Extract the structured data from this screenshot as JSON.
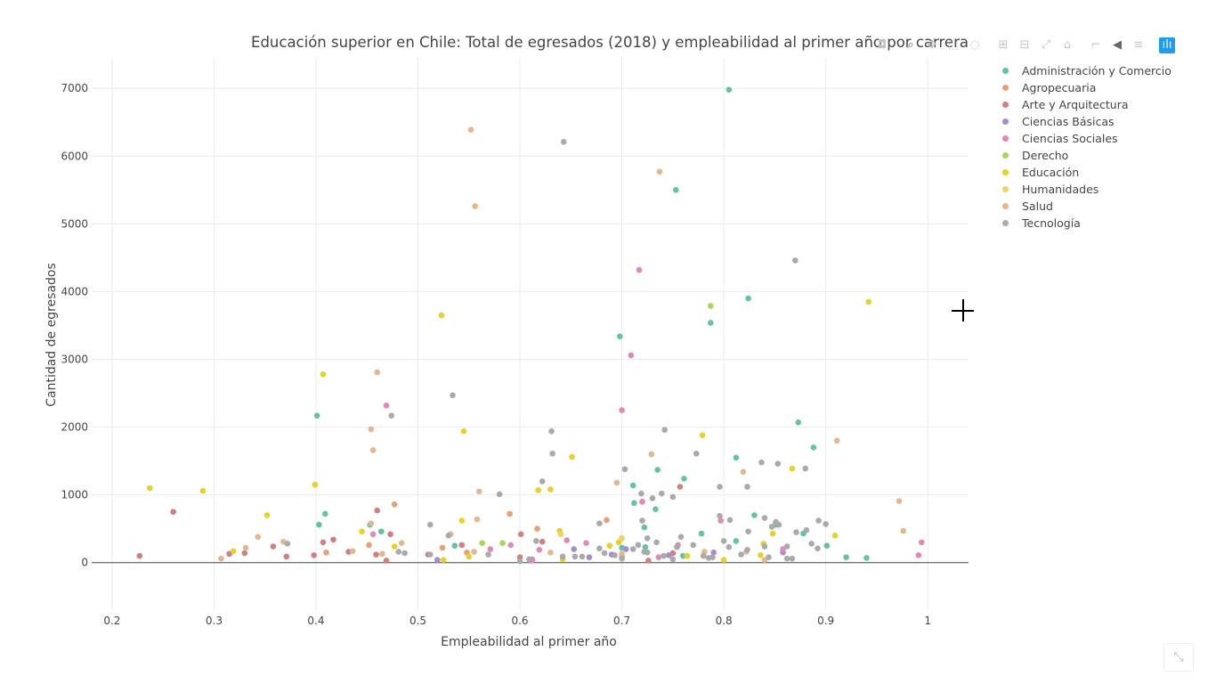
{
  "chart_data": {
    "type": "scatter",
    "title": "Educación superior en Chile: Total de egresados (2018) y empleabilidad al primer año por carrera",
    "xlabel": "Empleabilidad al primer año",
    "ylabel": "Cantidad de egresados",
    "xlim": [
      0.18,
      1.04
    ],
    "ylim": [
      -700,
      7450
    ],
    "xticks": [
      "0.2",
      "0.3",
      "0.4",
      "0.5",
      "0.6",
      "0.7",
      "0.8",
      "0.9",
      "1"
    ],
    "yticks": [
      "0",
      "1000",
      "2000",
      "3000",
      "4000",
      "5000",
      "6000",
      "7000"
    ],
    "grid": true,
    "legend_position": "right",
    "series": [
      {
        "name": "Administración y Comercio",
        "color": "#66c2a5",
        "points": [
          [
            0.805,
            6980
          ],
          [
            0.753,
            5500
          ],
          [
            0.824,
            3900
          ],
          [
            0.787,
            3540
          ],
          [
            0.698,
            3340
          ],
          [
            0.401,
            2170
          ],
          [
            0.873,
            2070
          ],
          [
            0.888,
            1700
          ],
          [
            0.812,
            1550
          ],
          [
            0.735,
            1370
          ],
          [
            0.761,
            1240
          ],
          [
            0.711,
            1140
          ],
          [
            0.712,
            880
          ],
          [
            0.733,
            790
          ],
          [
            0.409,
            720
          ],
          [
            0.83,
            700
          ],
          [
            0.403,
            560
          ],
          [
            0.453,
            560
          ],
          [
            0.851,
            560
          ],
          [
            0.722,
            520
          ],
          [
            0.464,
            460
          ],
          [
            0.878,
            430
          ],
          [
            0.778,
            430
          ],
          [
            0.812,
            320
          ],
          [
            0.536,
            250
          ],
          [
            0.901,
            250
          ],
          [
            0.7,
            220
          ],
          [
            0.723,
            230
          ],
          [
            0.92,
            80
          ],
          [
            0.94,
            70
          ],
          [
            0.76,
            100
          ],
          [
            0.7,
            90
          ]
        ]
      },
      {
        "name": "Agropecuaria",
        "color": "#e9a074",
        "points": [
          [
            0.477,
            860
          ],
          [
            0.59,
            720
          ],
          [
            0.685,
            630
          ],
          [
            0.617,
            500
          ],
          [
            0.452,
            260
          ],
          [
            0.524,
            220
          ],
          [
            0.548,
            150
          ],
          [
            0.41,
            150
          ]
        ]
      },
      {
        "name": "Arte y Arquitectura",
        "color": "#d08080",
        "points": [
          [
            0.26,
            750
          ],
          [
            0.227,
            100
          ],
          [
            0.46,
            770
          ],
          [
            0.473,
            420
          ],
          [
            0.407,
            300
          ],
          [
            0.417,
            340
          ],
          [
            0.358,
            240
          ],
          [
            0.33,
            140
          ],
          [
            0.315,
            130
          ],
          [
            0.371,
            90
          ],
          [
            0.398,
            110
          ],
          [
            0.432,
            160
          ],
          [
            0.469,
            30
          ],
          [
            0.459,
            120
          ],
          [
            0.51,
            120
          ],
          [
            0.543,
            260
          ],
          [
            0.601,
            420
          ],
          [
            0.622,
            310
          ],
          [
            0.757,
            1120
          ],
          [
            0.72,
            900
          ],
          [
            0.6,
            80
          ],
          [
            0.75,
            140
          ],
          [
            0.726,
            30
          ]
        ]
      },
      {
        "name": "Ciencias Básicas",
        "color": "#a58bd0",
        "points": [
          [
            0.519,
            40
          ],
          [
            0.61,
            30
          ],
          [
            0.653,
            200
          ],
          [
            0.668,
            80
          ],
          [
            0.69,
            120
          ],
          [
            0.704,
            200
          ],
          [
            0.746,
            110
          ],
          [
            0.79,
            150
          ],
          [
            0.858,
            150
          ]
        ]
      },
      {
        "name": "Ciencias Sociales",
        "color": "#e08ab8",
        "points": [
          [
            0.717,
            4320
          ],
          [
            0.709,
            3060
          ],
          [
            0.7,
            2250
          ],
          [
            0.469,
            2320
          ],
          [
            0.72,
            900
          ],
          [
            0.456,
            420
          ],
          [
            0.571,
            200
          ],
          [
            0.591,
            260
          ],
          [
            0.619,
            190
          ],
          [
            0.646,
            330
          ],
          [
            0.665,
            290
          ],
          [
            0.612,
            30
          ],
          [
            0.736,
            80
          ],
          [
            0.797,
            620
          ],
          [
            0.858,
            200
          ],
          [
            0.994,
            300
          ],
          [
            0.991,
            110
          ],
          [
            0.755,
            260
          ],
          [
            0.612,
            50
          ]
        ]
      },
      {
        "name": "Derecho",
        "color": "#a6d854",
        "points": [
          [
            0.787,
            3790
          ],
          [
            0.563,
            290
          ],
          [
            0.583,
            290
          ]
        ]
      },
      {
        "name": "Educación",
        "color": "#e5d22a",
        "points": [
          [
            0.942,
            3850
          ],
          [
            0.523,
            3650
          ],
          [
            0.407,
            2780
          ],
          [
            0.545,
            1940
          ],
          [
            0.779,
            1880
          ],
          [
            0.651,
            1560
          ],
          [
            0.867,
            1390
          ],
          [
            0.237,
            1100
          ],
          [
            0.289,
            1060
          ],
          [
            0.399,
            1150
          ],
          [
            0.618,
            1070
          ],
          [
            0.63,
            1080
          ],
          [
            0.352,
            700
          ],
          [
            0.543,
            620
          ],
          [
            0.639,
            470
          ],
          [
            0.445,
            460
          ],
          [
            0.477,
            240
          ],
          [
            0.319,
            170
          ],
          [
            0.55,
            90
          ],
          [
            0.525,
            40
          ],
          [
            0.642,
            50
          ],
          [
            0.688,
            250
          ],
          [
            0.697,
            300
          ],
          [
            0.8,
            40
          ],
          [
            0.839,
            280
          ],
          [
            0.848,
            430
          ],
          [
            0.909,
            400
          ],
          [
            0.836,
            110
          ],
          [
            0.764,
            100
          ]
        ]
      },
      {
        "name": "Humanidades",
        "color": "#f0d264",
        "points": [
          [
            0.64,
            420
          ],
          [
            0.7,
            360
          ]
        ]
      },
      {
        "name": "Salud",
        "color": "#e3b890",
        "points": [
          [
            0.552,
            6390
          ],
          [
            0.737,
            5770
          ],
          [
            0.556,
            5260
          ],
          [
            0.46,
            2810
          ],
          [
            0.454,
            1970
          ],
          [
            0.456,
            1660
          ],
          [
            0.729,
            1600
          ],
          [
            0.911,
            1800
          ],
          [
            0.819,
            1340
          ],
          [
            0.695,
            1180
          ],
          [
            0.56,
            1050
          ],
          [
            0.972,
            910
          ],
          [
            0.976,
            470
          ],
          [
            0.558,
            640
          ],
          [
            0.454,
            580
          ],
          [
            0.343,
            380
          ],
          [
            0.368,
            310
          ],
          [
            0.484,
            290
          ],
          [
            0.532,
            420
          ],
          [
            0.555,
            160
          ],
          [
            0.331,
            220
          ],
          [
            0.307,
            60
          ],
          [
            0.436,
            170
          ],
          [
            0.465,
            130
          ],
          [
            0.63,
            150
          ],
          [
            0.7,
            130
          ],
          [
            0.781,
            160
          ],
          [
            0.822,
            160
          ],
          [
            0.84,
            40
          ]
        ]
      },
      {
        "name": "Tecnología",
        "color": "#aaaaaa",
        "points": [
          [
            0.643,
            6210
          ],
          [
            0.87,
            4460
          ],
          [
            0.534,
            2470
          ],
          [
            0.474,
            2170
          ],
          [
            0.742,
            1960
          ],
          [
            0.631,
            1940
          ],
          [
            0.632,
            1610
          ],
          [
            0.773,
            1610
          ],
          [
            0.837,
            1480
          ],
          [
            0.853,
            1460
          ],
          [
            0.88,
            1390
          ],
          [
            0.703,
            1380
          ],
          [
            0.622,
            1200
          ],
          [
            0.796,
            1120
          ],
          [
            0.823,
            1120
          ],
          [
            0.739,
            1020
          ],
          [
            0.719,
            1020
          ],
          [
            0.58,
            1010
          ],
          [
            0.75,
            970
          ],
          [
            0.73,
            950
          ],
          [
            0.796,
            690
          ],
          [
            0.806,
            630
          ],
          [
            0.84,
            660
          ],
          [
            0.893,
            620
          ],
          [
            0.72,
            620
          ],
          [
            0.678,
            580
          ],
          [
            0.512,
            560
          ],
          [
            0.847,
            530
          ],
          [
            0.9,
            570
          ],
          [
            0.881,
            480
          ],
          [
            0.824,
            460
          ],
          [
            0.758,
            380
          ],
          [
            0.725,
            360
          ],
          [
            0.734,
            300
          ],
          [
            0.616,
            320
          ],
          [
            0.654,
            90
          ],
          [
            0.678,
            210
          ],
          [
            0.7,
            60
          ],
          [
            0.75,
            50
          ],
          [
            0.789,
            80
          ],
          [
            0.805,
            230
          ],
          [
            0.84,
            240
          ],
          [
            0.871,
            450
          ],
          [
            0.886,
            280
          ],
          [
            0.854,
            560
          ],
          [
            0.716,
            260
          ],
          [
            0.741,
            100
          ],
          [
            0.78,
            100
          ],
          [
            0.8,
            320
          ],
          [
            0.817,
            120
          ],
          [
            0.862,
            240
          ],
          [
            0.892,
            210
          ],
          [
            0.862,
            60
          ],
          [
            0.844,
            80
          ],
          [
            0.754,
            230
          ],
          [
            0.683,
            140
          ],
          [
            0.711,
            200
          ],
          [
            0.661,
            90
          ],
          [
            0.569,
            120
          ],
          [
            0.53,
            400
          ],
          [
            0.512,
            120
          ],
          [
            0.487,
            140
          ],
          [
            0.481,
            160
          ],
          [
            0.372,
            280
          ],
          [
            0.609,
            50
          ],
          [
            0.6,
            20
          ],
          [
            0.642,
            90
          ],
          [
            0.693,
            110
          ],
          [
            0.722,
            160
          ],
          [
            0.77,
            260
          ],
          [
            0.823,
            190
          ],
          [
            0.851,
            600
          ],
          [
            0.867,
            60
          ],
          [
            0.725,
            150
          ],
          [
            0.785,
            70
          ]
        ]
      }
    ]
  },
  "modebar": {
    "buttons": [
      {
        "name": "camera-icon",
        "glyph": "◘"
      },
      {
        "name": "zoom-icon",
        "glyph": "⌕"
      },
      {
        "name": "pan-icon",
        "glyph": "✥"
      },
      {
        "name": "box-select-icon",
        "glyph": "⬚"
      },
      {
        "name": "lasso-select-icon",
        "glyph": "◌"
      },
      {
        "name": "zoom-in-icon",
        "glyph": "⊞"
      },
      {
        "name": "zoom-out-icon",
        "glyph": "⊟"
      },
      {
        "name": "autoscale-icon",
        "glyph": "⤢"
      },
      {
        "name": "reset-axes-icon",
        "glyph": "⌂"
      },
      {
        "name": "spike-lines-icon",
        "glyph": "⌐"
      },
      {
        "name": "hover-closest-icon",
        "glyph": "◀"
      },
      {
        "name": "hover-compare-icon",
        "glyph": "≡"
      },
      {
        "name": "plotly-logo-icon",
        "glyph": "ılı"
      }
    ]
  },
  "corner_button": {
    "glyph": "⤡"
  }
}
